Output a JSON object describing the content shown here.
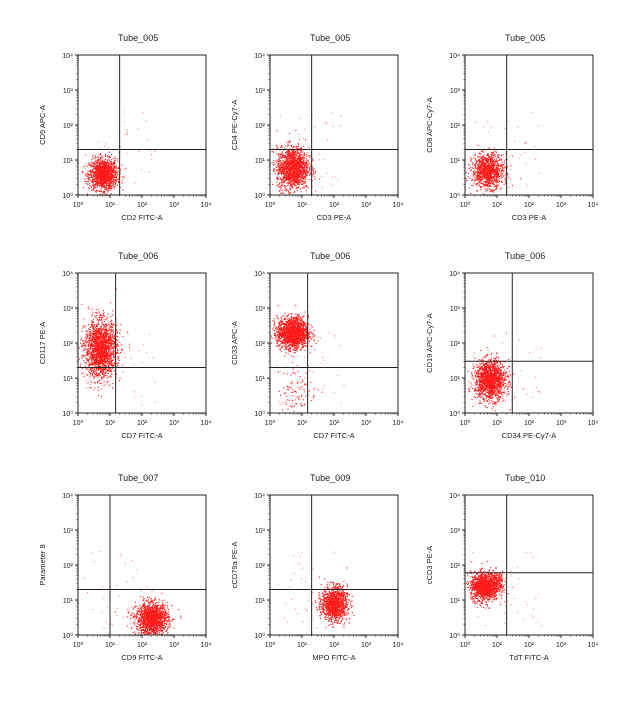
{
  "point_color": "#ff1a1a",
  "axis_color": "#222222",
  "chart_data": [
    {
      "type": "scatter",
      "title": "Tube_005",
      "xlabel": "CD2 FITC-A",
      "ylabel": "CD5 APC-A",
      "xscale": "log",
      "yscale": "log",
      "xlim": [
        1,
        10000
      ],
      "ylim": [
        1,
        10000
      ],
      "tick_labels": [
        "10⁰",
        "10¹",
        "10²",
        "10³",
        "10⁴"
      ],
      "quadrant_gate": {
        "x": 20,
        "y": 20
      },
      "clusters": [
        {
          "center_x": 6,
          "center_y": 4,
          "spread_x": 0.22,
          "spread_y": 0.22,
          "count": 1400
        }
      ]
    },
    {
      "type": "scatter",
      "title": "Tube_005",
      "xlabel": "CD3 PE-A",
      "ylabel": "CD4 PE-Cy7-A",
      "xscale": "log",
      "yscale": "log",
      "xlim": [
        1,
        10000
      ],
      "ylim": [
        1,
        10000
      ],
      "tick_labels": [
        "10⁰",
        "10¹",
        "10²",
        "10³",
        "10⁴"
      ],
      "quadrant_gate": {
        "x": 20,
        "y": 20
      },
      "clusters": [
        {
          "center_x": 5,
          "center_y": 6,
          "spread_x": 0.25,
          "spread_y": 0.3,
          "count": 1500
        }
      ]
    },
    {
      "type": "scatter",
      "title": "Tube_005",
      "xlabel": "CD3 PE-A",
      "ylabel": "CD8 APC-Cy7-A",
      "xscale": "log",
      "yscale": "log",
      "xlim": [
        1,
        10000
      ],
      "ylim": [
        1,
        10000
      ],
      "tick_labels": [
        "10⁰",
        "10¹",
        "10²",
        "10³",
        "10⁴"
      ],
      "quadrant_gate": {
        "x": 20,
        "y": 20
      },
      "clusters": [
        {
          "center_x": 5,
          "center_y": 5,
          "spread_x": 0.24,
          "spread_y": 0.24,
          "count": 1100
        }
      ]
    },
    {
      "type": "scatter",
      "title": "Tube_006",
      "xlabel": "CD7 FITC-A",
      "ylabel": "CD117 PE-A",
      "xscale": "log",
      "yscale": "log",
      "xlim": [
        1,
        10000
      ],
      "ylim": [
        1,
        10000
      ],
      "tick_labels": [
        "10⁰",
        "10¹",
        "10²",
        "10³",
        "10⁴"
      ],
      "quadrant_gate": {
        "x": 15,
        "y": 20
      },
      "clusters": [
        {
          "center_x": 5,
          "center_y": 70,
          "spread_x": 0.25,
          "spread_y": 0.4,
          "count": 1900
        }
      ]
    },
    {
      "type": "scatter",
      "title": "Tube_006",
      "xlabel": "CD7 FITC-A",
      "ylabel": "CD33 APC-A",
      "xscale": "log",
      "yscale": "log",
      "xlim": [
        1,
        10000
      ],
      "ylim": [
        1,
        10000
      ],
      "tick_labels": [
        "10⁰",
        "10¹",
        "10²",
        "10³",
        "10⁴"
      ],
      "quadrant_gate": {
        "x": 15,
        "y": 20
      },
      "clusters": [
        {
          "center_x": 5,
          "center_y": 200,
          "spread_x": 0.24,
          "spread_y": 0.22,
          "count": 1700
        },
        {
          "center_x": 7,
          "center_y": 5,
          "spread_x": 0.3,
          "spread_y": 0.35,
          "count": 90
        }
      ]
    },
    {
      "type": "scatter",
      "title": "Tube_006",
      "xlabel": "CD34 PE-Cy7-A",
      "ylabel": "CD19 APC-Cy7-A",
      "xscale": "log",
      "yscale": "log",
      "xlim": [
        1,
        10000
      ],
      "ylim": [
        1,
        10000
      ],
      "tick_labels": [
        "10⁰",
        "10¹",
        "10²",
        "10³",
        "10⁴"
      ],
      "quadrant_gate": {
        "x": 30,
        "y": 30
      },
      "clusters": [
        {
          "center_x": 6,
          "center_y": 9,
          "spread_x": 0.24,
          "spread_y": 0.28,
          "count": 1500
        }
      ]
    },
    {
      "type": "scatter",
      "title": "Tube_007",
      "xlabel": "CD9 FITC-A",
      "ylabel": "Parameter 8",
      "xscale": "log",
      "yscale": "log",
      "xlim": [
        1,
        10000
      ],
      "ylim": [
        1,
        10000
      ],
      "tick_labels": [
        "10⁰",
        "10¹",
        "10²",
        "10³",
        "10⁴"
      ],
      "quadrant_gate": {
        "x": 10,
        "y": 20
      },
      "clusters": [
        {
          "center_x": 200,
          "center_y": 3,
          "spread_x": 0.25,
          "spread_y": 0.22,
          "count": 1500
        }
      ]
    },
    {
      "type": "scatter",
      "title": "Tube_009",
      "xlabel": "MPO FITC-A",
      "ylabel": "cCD79a PE-A",
      "xscale": "log",
      "yscale": "log",
      "xlim": [
        1,
        10000
      ],
      "ylim": [
        1,
        10000
      ],
      "tick_labels": [
        "10⁰",
        "10¹",
        "10²",
        "10³",
        "10⁴"
      ],
      "quadrant_gate": {
        "x": 20,
        "y": 20
      },
      "clusters": [
        {
          "center_x": 100,
          "center_y": 8,
          "spread_x": 0.2,
          "spread_y": 0.24,
          "count": 1200
        }
      ]
    },
    {
      "type": "scatter",
      "title": "Tube_010",
      "xlabel": "TdT FITC-A",
      "ylabel": "cCD3 PE-A",
      "xscale": "log",
      "yscale": "log",
      "xlim": [
        1,
        10000
      ],
      "ylim": [
        1,
        10000
      ],
      "tick_labels": [
        "10⁰",
        "10¹",
        "10²",
        "10³",
        "10⁴"
      ],
      "quadrant_gate": {
        "x": 20,
        "y": 60
      },
      "clusters": [
        {
          "center_x": 4,
          "center_y": 25,
          "spread_x": 0.22,
          "spread_y": 0.2,
          "count": 1300
        },
        {
          "center_x": 10,
          "center_y": 40,
          "spread_x": 0.12,
          "spread_y": 0.12,
          "count": 120
        }
      ]
    }
  ]
}
